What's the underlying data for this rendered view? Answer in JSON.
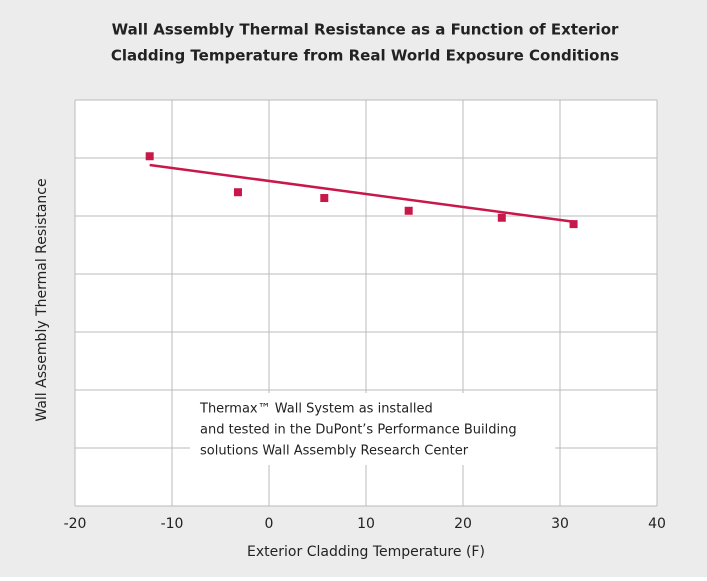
{
  "chart_data": {
    "type": "scatter",
    "title": [
      "Wall Assembly Thermal Resistance as a Function of Exterior",
      "Cladding Temperature from Real World Exposure Conditions"
    ],
    "x_label": "Exterior Cladding Temperature (F)",
    "y_label": "Wall Assembly Thermal Resistance",
    "x": [
      -12.3,
      -3.2,
      5.7,
      14.4,
      24,
      31.4
    ],
    "values": [
      6.03,
      5.41,
      5.31,
      5.09,
      4.97,
      4.86
    ],
    "color": "#c8184a",
    "trendline": {
      "x": [
        -12.3,
        31.4
      ],
      "values": [
        5.88,
        4.9
      ]
    },
    "xlim": [
      -20,
      40
    ],
    "xticks": [
      -20,
      -10,
      0,
      10,
      20,
      30,
      40
    ],
    "ylim": [
      0,
      7
    ],
    "yticks": [
      0,
      1,
      2,
      3,
      4,
      5,
      6,
      7
    ],
    "grid": true,
    "annotation": [
      "Thermax™ Wall System as installed",
      "and tested in the DuPont’s Performance Building",
      "solutions Wall Assembly Research Center"
    ]
  }
}
